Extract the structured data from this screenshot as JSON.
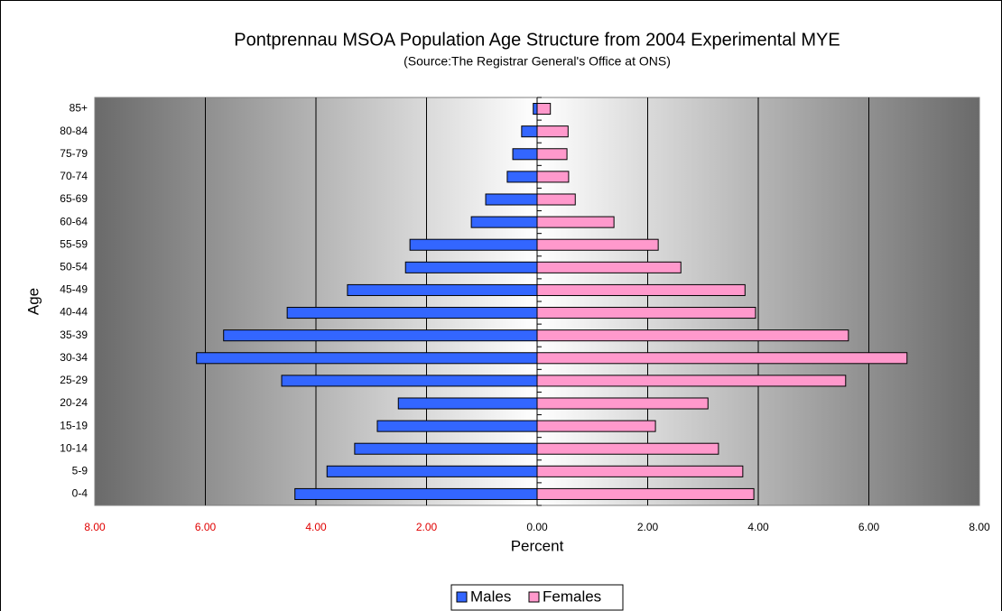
{
  "chart_data": {
    "type": "pyramid",
    "title": "Pontprennau MSOA Population Age Structure from 2004 Experimental MYE",
    "subtitle": "(Source:The Registrar General's Office at ONS)",
    "x_label": "Percent",
    "y_label": "Age",
    "categories": [
      "0-4",
      "5-9",
      "10-14",
      "15-19",
      "20-24",
      "25-29",
      "30-34",
      "35-39",
      "40-44",
      "45-49",
      "50-54",
      "55-59",
      "60-64",
      "65-69",
      "70-74",
      "75-79",
      "80-84",
      "85+"
    ],
    "series": [
      {
        "name": "Males",
        "color": "#3366ff",
        "values": [
          -4.38,
          -3.8,
          -3.3,
          -2.89,
          -2.51,
          -4.62,
          -6.16,
          -5.67,
          -4.52,
          -3.43,
          -2.38,
          -2.3,
          -1.19,
          -0.93,
          -0.54,
          -0.44,
          -0.28,
          -0.07
        ]
      },
      {
        "name": "Females",
        "color": "#ff99cc",
        "values": [
          3.92,
          3.72,
          3.28,
          2.14,
          3.09,
          5.58,
          6.69,
          5.63,
          3.95,
          3.76,
          2.6,
          2.19,
          1.39,
          0.69,
          0.57,
          0.54,
          0.56,
          0.24
        ]
      }
    ],
    "xlim": [
      -8,
      8
    ],
    "xticks": [
      {
        "value": -8,
        "label": "8.00"
      },
      {
        "value": -6,
        "label": "6.00"
      },
      {
        "value": -4,
        "label": "4.00"
      },
      {
        "value": -2,
        "label": "2.00"
      },
      {
        "value": 0,
        "label": "0.00"
      },
      {
        "value": 2,
        "label": "2.00"
      },
      {
        "value": 4,
        "label": "4.00"
      },
      {
        "value": 6,
        "label": "6.00"
      },
      {
        "value": 8,
        "label": "8.00"
      }
    ],
    "grid": true,
    "legend": "bottom"
  }
}
